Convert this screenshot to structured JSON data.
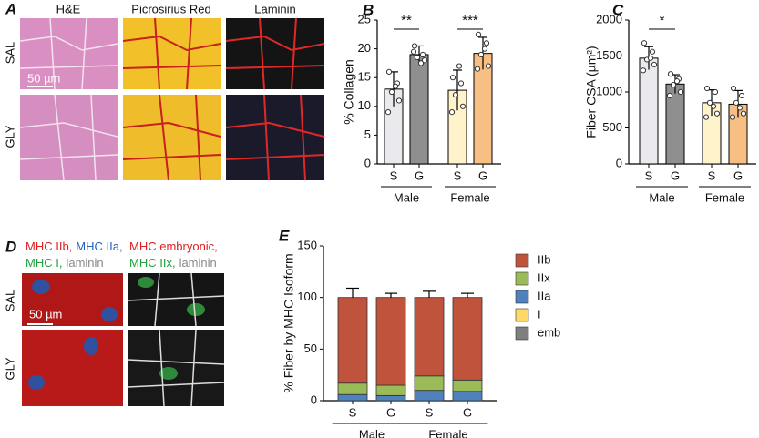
{
  "images": {
    "A": {
      "label": "A",
      "columns": [
        "H&E",
        "Picrosirius Red",
        "Laminin"
      ],
      "rows": [
        "SAL",
        "GLY"
      ],
      "scale": "50 µm"
    },
    "D": {
      "label": "D",
      "stain_lines": [
        [
          {
            "text": "MHC IIb,",
            "color": "#e02020"
          },
          {
            "text": "MHC IIa,",
            "color": "#2060c0"
          }
        ],
        [
          {
            "text": "MHC I,",
            "color": "#20a040"
          },
          {
            "text": "laminin",
            "color": "#888888"
          }
        ],
        [
          {
            "text": "MHC embryonic,",
            "color": "#e02020"
          }
        ],
        [
          {
            "text": "MHC IIx,",
            "color": "#20a040"
          },
          {
            "text": "laminin",
            "color": "#888888"
          }
        ]
      ],
      "rows": [
        "SAL",
        "GLY"
      ],
      "scale": "50 µm"
    }
  },
  "chart_data": [
    {
      "type": "bar",
      "label": "B",
      "ylabel": "% Collagen",
      "categories": [
        "S",
        "G",
        "S",
        "G"
      ],
      "groups": [
        "Male",
        "Female"
      ],
      "values": [
        13,
        19,
        12.8,
        19.2
      ],
      "errors": [
        3,
        1.5,
        3.5,
        2.8
      ],
      "colors": [
        "#e9e9ee",
        "#8f8f8f",
        "#fff3cc",
        "#f8bf85"
      ],
      "points": [
        [
          16,
          14,
          12.5,
          11,
          9,
          13.5
        ],
        [
          20.5,
          19,
          18.5,
          18,
          19.5,
          17.5
        ],
        [
          15,
          14,
          12,
          10,
          9,
          17
        ],
        [
          22.5,
          21,
          19,
          17,
          16.5,
          20
        ]
      ],
      "significance": [
        "**",
        "***"
      ],
      "ylim": [
        0,
        25
      ],
      "yticks": [
        0,
        5,
        10,
        15,
        20,
        25
      ]
    },
    {
      "type": "bar",
      "label": "C",
      "ylabel": "Fiber CSA (µm²)",
      "categories": [
        "S",
        "G",
        "S",
        "G"
      ],
      "groups": [
        "Male",
        "Female"
      ],
      "values": [
        1470,
        1110,
        850,
        830
      ],
      "errors": [
        160,
        130,
        180,
        190
      ],
      "colors": [
        "#e9e9ee",
        "#8f8f8f",
        "#fff3cc",
        "#f8bf85"
      ],
      "points": [
        [
          1680,
          1560,
          1450,
          1380,
          1300,
          1470
        ],
        [
          1250,
          1180,
          1100,
          1000,
          950,
          1150
        ],
        [
          1050,
          1000,
          850,
          700,
          650,
          800
        ],
        [
          1050,
          950,
          850,
          700,
          650,
          780
        ]
      ],
      "significance": [
        "*",
        null
      ],
      "ylim": [
        0,
        2000
      ],
      "yticks": [
        0,
        500,
        1000,
        1500,
        2000
      ]
    },
    {
      "type": "stacked-bar",
      "label": "E",
      "ylabel": "% Fiber by MHC Isoform",
      "categories": [
        "S",
        "G",
        "S",
        "G"
      ],
      "groups": [
        "Male",
        "Female"
      ],
      "series": [
        {
          "name": "IIb",
          "color": "#c0533b",
          "values": [
            83,
            85,
            76,
            80
          ],
          "errors": [
            9,
            4,
            6,
            4
          ]
        },
        {
          "name": "IIx",
          "color": "#9bbb59",
          "values": [
            11,
            10,
            14,
            11
          ],
          "errors": [
            5,
            4,
            3,
            3
          ]
        },
        {
          "name": "IIa",
          "color": "#4f81bd",
          "values": [
            6,
            5,
            10,
            9
          ],
          "errors": [
            3,
            2,
            4,
            3
          ]
        },
        {
          "name": "I",
          "color": "#ffd966",
          "values": [
            0,
            0,
            0,
            0
          ],
          "errors": [
            0,
            0,
            0,
            0
          ]
        },
        {
          "name": "emb",
          "color": "#7f7f7f",
          "values": [
            0,
            0,
            0,
            0
          ],
          "errors": [
            0,
            0,
            0,
            0
          ]
        }
      ],
      "ylim": [
        0,
        150
      ],
      "yticks": [
        0,
        50,
        100,
        150
      ]
    }
  ]
}
